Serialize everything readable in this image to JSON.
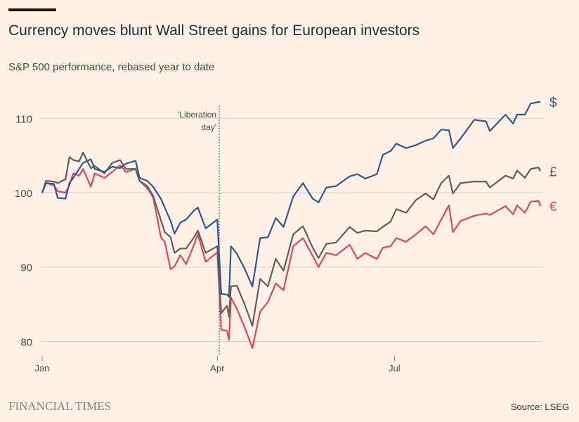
{
  "header": {
    "title": "Currency moves blunt Wall Street gains for European investors",
    "subtitle": "S&P 500 performance, rebased year to date"
  },
  "footer": {
    "brand": "FINANCIAL TIMES",
    "source": "Source: LSEG"
  },
  "colors": {
    "background": "#fff1e5",
    "usd": "#2d5a8e",
    "gbp": "#5e5e5e",
    "eur": "#e2465c",
    "grid": "#d9cdc3"
  },
  "chart_data": {
    "type": "line",
    "title": "Currency moves blunt Wall Street gains for European investors",
    "subtitle": "S&P 500 performance, rebased year to date",
    "xlabel": "",
    "ylabel": "",
    "ylim": [
      78,
      113
    ],
    "xlim": [
      "Jan 01",
      "Sep 15"
    ],
    "yticks": [
      80,
      90,
      100,
      110
    ],
    "xticks": [
      {
        "date": "Jan 01",
        "label": "Jan"
      },
      {
        "date": "Apr 01",
        "label": "Apr"
      },
      {
        "date": "Jul 01",
        "label": "Jul"
      }
    ],
    "grid": "horizontal",
    "legend": "direct labels at line ends (right)",
    "annotation": {
      "date": "Apr 02",
      "text_line1": "'Liberation",
      "text_line2": "day'"
    },
    "x": [
      "Jan 01",
      "Jan 03",
      "Jan 07",
      "Jan 09",
      "Jan 13",
      "Jan 15",
      "Jan 17",
      "Jan 20",
      "Jan 22",
      "Jan 26",
      "Jan 28",
      "Feb 02",
      "Feb 06",
      "Feb 10",
      "Feb 13",
      "Feb 18",
      "Feb 20",
      "Feb 24",
      "Feb 27",
      "Mar 03",
      "Mar 05",
      "Mar 08",
      "Mar 10",
      "Mar 13",
      "Mar 16",
      "Mar 20",
      "Mar 22",
      "Mar 26",
      "Apr 01",
      "Apr 03",
      "Apr 06",
      "Apr 07",
      "Apr 08",
      "Apr 11",
      "Apr 15",
      "Apr 19",
      "Apr 23",
      "Apr 27",
      "May 01",
      "May 05",
      "May 10",
      "May 15",
      "May 20",
      "May 23",
      "May 27",
      "Jun 01",
      "Jun 08",
      "Jun 12",
      "Jun 16",
      "Jun 22",
      "Jun 25",
      "Jun 29",
      "Jul 02",
      "Jul 07",
      "Jul 12",
      "Jul 17",
      "Jul 21",
      "Jul 25",
      "Jul 29",
      "Jul 31",
      "Aug 04",
      "Aug 11",
      "Aug 17",
      "Aug 19",
      "Aug 27",
      "Aug 31",
      "Sep 02",
      "Sep 06",
      "Sep 09",
      "Sep 13",
      "Sep 14"
    ],
    "series": [
      {
        "name": "$",
        "color": "#2d5a8e",
        "values": [
          100,
          101.3,
          101.2,
          99.3,
          99.2,
          101.3,
          102,
          103.2,
          104,
          104.5,
          103.2,
          102.8,
          103.5,
          103.3,
          103.9,
          104.3,
          102,
          101.6,
          100.8,
          99.2,
          98,
          96.2,
          94.5,
          96,
          96.4,
          97.6,
          98,
          95.2,
          96.4,
          86.4,
          86.3,
          86,
          92.8,
          91.8,
          89.8,
          87.4,
          93.9,
          94,
          96.6,
          95.4,
          99.5,
          101.3,
          99.2,
          98.7,
          100.7,
          100.9,
          102.2,
          102.5,
          101.9,
          102.5,
          105.1,
          105.6,
          106.6,
          106,
          106.4,
          107,
          107.3,
          108.5,
          108.4,
          106,
          107.3,
          109.8,
          109.6,
          108.3,
          110.5,
          109.3,
          110.5,
          110.5,
          112,
          112.2,
          112.2
        ]
      },
      {
        "name": "£",
        "color": "#5e5e5e",
        "values": [
          100,
          101.6,
          101.5,
          101.3,
          101.8,
          104.8,
          104.4,
          104.2,
          105.4,
          103.3,
          103.6,
          102.6,
          104,
          104.4,
          103.2,
          103.2,
          101.6,
          100.9,
          99.6,
          96.3,
          94.7,
          94,
          91.9,
          92.5,
          92.5,
          94,
          94.9,
          91.9,
          92.8,
          83.8,
          84.8,
          83.3,
          87.4,
          87.5,
          85,
          82.1,
          88.4,
          87.4,
          91.1,
          89.5,
          94.4,
          95.5,
          92.6,
          91.2,
          93.1,
          93.3,
          95.4,
          94.6,
          94.9,
          94.8,
          95.4,
          96.1,
          97.8,
          97.3,
          99,
          99.9,
          99.1,
          101.3,
          102.3,
          99.9,
          101.3,
          101.5,
          101.5,
          100.7,
          102.3,
          101.9,
          103,
          102,
          103.2,
          103.4,
          102.9
        ]
      },
      {
        "name": "€",
        "color": "#e2465c",
        "values": [
          100,
          101.3,
          101,
          100.2,
          100,
          101,
          102.6,
          102.3,
          103.2,
          100.8,
          102.6,
          102,
          102.8,
          103.7,
          102.8,
          103.2,
          101.6,
          100.6,
          99.4,
          94,
          93.4,
          89.7,
          90.1,
          91.6,
          90.4,
          93,
          94.4,
          90.7,
          92,
          81.6,
          81.4,
          80.2,
          85.9,
          84.4,
          81.9,
          79.1,
          84,
          85.3,
          87.8,
          86.9,
          92.8,
          93.9,
          91.5,
          90,
          91.9,
          91.6,
          93,
          91.1,
          91.9,
          91.1,
          92.6,
          92.8,
          93.9,
          93.4,
          94.4,
          95.5,
          94.4,
          96.4,
          98.3,
          94.7,
          96.2,
          96.9,
          97.2,
          97,
          98.2,
          97.1,
          98.3,
          97.3,
          98.8,
          98.9,
          98.2
        ]
      }
    ]
  }
}
